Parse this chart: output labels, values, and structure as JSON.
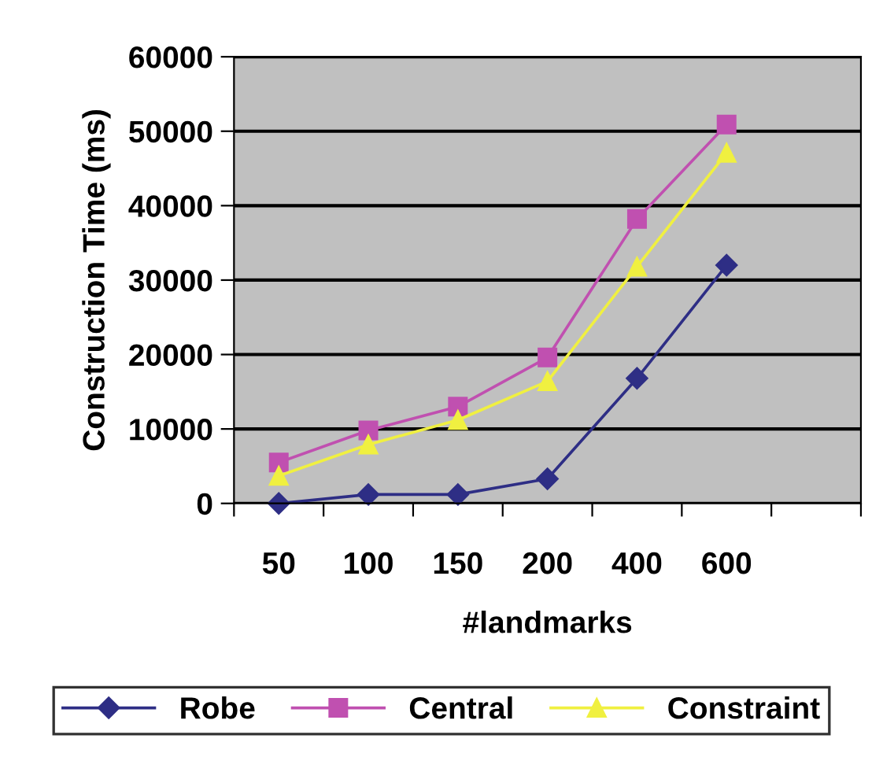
{
  "chart_data": {
    "type": "line",
    "xlabel": "#landmarks",
    "ylabel": "Construction Time (ms)",
    "categories": [
      "50",
      "100",
      "150",
      "200",
      "400",
      "600",
      null
    ],
    "series": [
      {
        "name": "Robe",
        "color": "#2e2e85",
        "marker": "diamond",
        "values": [
          0,
          1200,
          1200,
          3300,
          16800,
          32000,
          null
        ]
      },
      {
        "name": "Central",
        "color": "#c050b0",
        "marker": "square",
        "values": [
          5500,
          9800,
          13000,
          19600,
          38200,
          50900,
          null
        ]
      },
      {
        "name": "Constraint",
        "color": "#f0f040",
        "marker": "triangle",
        "values": [
          3700,
          7900,
          11200,
          16400,
          31800,
          47100,
          null
        ]
      }
    ],
    "ylim": [
      0,
      60000
    ],
    "yticks": [
      0,
      10000,
      20000,
      30000,
      40000,
      50000,
      60000
    ],
    "grid": "y",
    "legend": "bottom",
    "line_style": "solid"
  }
}
